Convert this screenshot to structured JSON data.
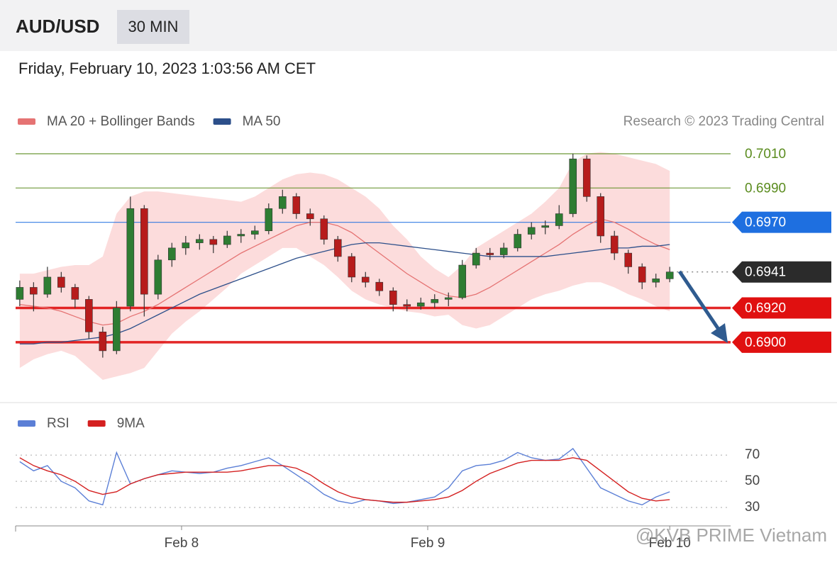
{
  "header": {
    "symbol": "AUD/USD",
    "interval": "30 MIN",
    "timestamp": "Friday, February 10, 2023 1:03:56 AM CET"
  },
  "watermark": "@KVB PRIME Vietnam",
  "chart_data": [
    {
      "type": "candlestick",
      "copyright": "Research © 2023 Trading Central",
      "xlim": [
        -0.3,
        51.4
      ],
      "ylim": [
        0.6866,
        0.7017
      ],
      "up_color": "#2e7d32",
      "down_color": "#b71c1c",
      "band_color": "#fbd3d3",
      "candles": {
        "open": [
          0.6925,
          0.6932,
          0.6928,
          0.6938,
          0.6932,
          0.6925,
          0.6906,
          0.6895,
          0.6921,
          0.6978,
          0.6928,
          0.6948,
          0.6955,
          0.6958,
          0.696,
          0.6957,
          0.6962,
          0.6963,
          0.6965,
          0.6978,
          0.6985,
          0.6975,
          0.6972,
          0.696,
          0.695,
          0.6938,
          0.6935,
          0.693,
          0.6922,
          0.6921,
          0.6923,
          0.6925,
          0.6926,
          0.6945,
          0.6952,
          0.6951,
          0.6955,
          0.6963,
          0.6967,
          0.6968,
          0.6975,
          0.7007,
          0.6985,
          0.6962,
          0.6952,
          0.6944,
          0.6935,
          0.6937
        ],
        "high": [
          0.6936,
          0.6935,
          0.6944,
          0.6941,
          0.6934,
          0.6927,
          0.6909,
          0.6924,
          0.6985,
          0.698,
          0.6951,
          0.6958,
          0.6962,
          0.6963,
          0.6962,
          0.6965,
          0.6966,
          0.6968,
          0.6981,
          0.6989,
          0.6987,
          0.6978,
          0.6974,
          0.6962,
          0.6952,
          0.6941,
          0.6937,
          0.6932,
          0.6925,
          0.6926,
          0.6928,
          0.6929,
          0.6948,
          0.6955,
          0.6955,
          0.6958,
          0.6966,
          0.697,
          0.6971,
          0.698,
          0.701,
          0.7009,
          0.6987,
          0.6965,
          0.6954,
          0.6946,
          0.694,
          0.6944
        ],
        "low": [
          0.6921,
          0.6918,
          0.6926,
          0.6929,
          0.692,
          0.6902,
          0.6891,
          0.6893,
          0.6918,
          0.6915,
          0.6925,
          0.6944,
          0.6951,
          0.6954,
          0.6952,
          0.6955,
          0.6958,
          0.696,
          0.6963,
          0.6975,
          0.6972,
          0.6968,
          0.6957,
          0.6947,
          0.6935,
          0.6932,
          0.6927,
          0.6918,
          0.6918,
          0.6919,
          0.692,
          0.6921,
          0.6925,
          0.6943,
          0.6948,
          0.6949,
          0.6953,
          0.696,
          0.6963,
          0.6966,
          0.6973,
          0.6982,
          0.6958,
          0.6948,
          0.694,
          0.6931,
          0.6932,
          0.6935
        ],
        "close": [
          0.6932,
          0.6928,
          0.6938,
          0.6932,
          0.6925,
          0.6906,
          0.6895,
          0.692,
          0.6978,
          0.6928,
          0.6948,
          0.6955,
          0.6958,
          0.696,
          0.6957,
          0.6962,
          0.6963,
          0.6965,
          0.6978,
          0.6985,
          0.6975,
          0.6972,
          0.696,
          0.695,
          0.6938,
          0.6935,
          0.693,
          0.6922,
          0.6921,
          0.6923,
          0.6925,
          0.6926,
          0.6945,
          0.6952,
          0.6951,
          0.6955,
          0.6963,
          0.6967,
          0.6968,
          0.6975,
          0.7007,
          0.6985,
          0.6962,
          0.6952,
          0.6944,
          0.6935,
          0.6937,
          0.6941
        ]
      },
      "series": [
        {
          "name": "MA 20 + Bollinger Bands",
          "color": "#e57373",
          "values": [
            0.6922,
            0.6921,
            0.692,
            0.6918,
            0.6915,
            0.6912,
            0.691,
            0.6911,
            0.6915,
            0.6918,
            0.6922,
            0.6927,
            0.6932,
            0.6937,
            0.6942,
            0.6947,
            0.6952,
            0.6956,
            0.696,
            0.6964,
            0.6968,
            0.697,
            0.697,
            0.6968,
            0.6964,
            0.6958,
            0.6952,
            0.6946,
            0.694,
            0.6935,
            0.693,
            0.6927,
            0.6926,
            0.6928,
            0.6932,
            0.6937,
            0.6942,
            0.6947,
            0.6952,
            0.6957,
            0.6963,
            0.6968,
            0.6972,
            0.697,
            0.6966,
            0.6961,
            0.6957,
            0.6954
          ],
          "upper": [
            0.694,
            0.694,
            0.6942,
            0.6944,
            0.6945,
            0.6945,
            0.695,
            0.6975,
            0.6985,
            0.6988,
            0.6988,
            0.6987,
            0.6986,
            0.6985,
            0.6984,
            0.6983,
            0.6982,
            0.6985,
            0.699,
            0.6995,
            0.6998,
            0.6999,
            0.6998,
            0.6995,
            0.699,
            0.6985,
            0.6978,
            0.6968,
            0.696,
            0.695,
            0.6943,
            0.6938,
            0.6945,
            0.6955,
            0.696,
            0.6965,
            0.697,
            0.6975,
            0.6982,
            0.699,
            0.7005,
            0.701,
            0.7011,
            0.701,
            0.7008,
            0.7006,
            0.7004,
            0.7
          ],
          "lower": [
            0.6885,
            0.689,
            0.6893,
            0.6895,
            0.6892,
            0.6885,
            0.6878,
            0.688,
            0.6882,
            0.6885,
            0.6895,
            0.6905,
            0.6912,
            0.6918,
            0.6925,
            0.6932,
            0.694,
            0.6945,
            0.695,
            0.6955,
            0.6955,
            0.695,
            0.6945,
            0.6938,
            0.693,
            0.6925,
            0.6922,
            0.692,
            0.6918,
            0.6917,
            0.6915,
            0.6916,
            0.691,
            0.6908,
            0.691,
            0.6915,
            0.692,
            0.6925,
            0.6928,
            0.693,
            0.6933,
            0.6935,
            0.6935,
            0.6932,
            0.6928,
            0.6925,
            0.6921,
            0.6918
          ]
        },
        {
          "name": "MA 50",
          "color": "#2c4f8a",
          "values": [
            0.6899,
            0.6899,
            0.69,
            0.69,
            0.6901,
            0.6902,
            0.6903,
            0.6905,
            0.6908,
            0.6912,
            0.6916,
            0.692,
            0.6924,
            0.6928,
            0.6931,
            0.6934,
            0.6937,
            0.694,
            0.6943,
            0.6946,
            0.6949,
            0.6951,
            0.6953,
            0.6955,
            0.6957,
            0.6958,
            0.6958,
            0.6957,
            0.6956,
            0.6955,
            0.6954,
            0.6953,
            0.6952,
            0.6951,
            0.695,
            0.695,
            0.695,
            0.695,
            0.695,
            0.6951,
            0.6952,
            0.6953,
            0.6954,
            0.6955,
            0.6955,
            0.6956,
            0.6956,
            0.6957
          ]
        }
      ],
      "levels": [
        {
          "value": 0.701,
          "label": "0.7010",
          "color": "#5b8c1f",
          "style": "line",
          "badge": false
        },
        {
          "value": 0.699,
          "label": "0.6990",
          "color": "#5b8c1f",
          "style": "line",
          "badge": false
        },
        {
          "value": 0.697,
          "label": "0.6970",
          "color": "#1e6fe0",
          "style": "line",
          "badge": true
        },
        {
          "value": 0.6941,
          "label": "0.6941",
          "color": "#2b2b2b",
          "style": "dotted",
          "badge": true
        },
        {
          "value": 0.692,
          "label": "0.6920",
          "color": "#e01010",
          "style": "thick",
          "badge": true
        },
        {
          "value": 0.69,
          "label": "0.6900",
          "color": "#e01010",
          "style": "thick",
          "badge": true
        }
      ]
    },
    {
      "type": "line",
      "xlim": [
        -0.3,
        51.4
      ],
      "ylim": [
        17,
        82
      ],
      "yticks": [
        30,
        50,
        70
      ],
      "grid": true,
      "xticks": [
        {
          "value": 11.7,
          "label": "Feb 8"
        },
        {
          "value": 29.5,
          "label": "Feb 9"
        },
        {
          "value": 47,
          "label": "Feb 10"
        }
      ],
      "series": [
        {
          "name": "RSI",
          "color": "#5b7fd6",
          "values": [
            65,
            58,
            62,
            50,
            45,
            35,
            32,
            72,
            48,
            52,
            55,
            58,
            57,
            56,
            57,
            60,
            62,
            65,
            68,
            62,
            55,
            48,
            40,
            35,
            33,
            36,
            35,
            33,
            34,
            36,
            38,
            45,
            58,
            62,
            63,
            66,
            72,
            68,
            66,
            67,
            75,
            60,
            45,
            40,
            35,
            32,
            38,
            42
          ]
        },
        {
          "name": "9MA",
          "color": "#d42020",
          "values": [
            68,
            62,
            58,
            55,
            50,
            43,
            40,
            42,
            48,
            52,
            55,
            56,
            57,
            57,
            57,
            57,
            58,
            60,
            62,
            62,
            60,
            55,
            48,
            42,
            38,
            36,
            35,
            34,
            34,
            35,
            36,
            38,
            43,
            50,
            56,
            60,
            64,
            66,
            66,
            66,
            68,
            66,
            58,
            50,
            42,
            37,
            35,
            36
          ]
        }
      ]
    }
  ]
}
